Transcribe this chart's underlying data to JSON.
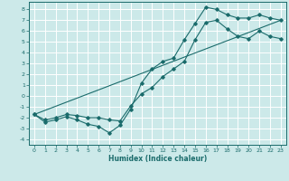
{
  "xlabel": "Humidex (Indice chaleur)",
  "ylabel": "",
  "xlim": [
    -0.5,
    23.5
  ],
  "ylim": [
    -4.5,
    8.7
  ],
  "xticks": [
    0,
    1,
    2,
    3,
    4,
    5,
    6,
    7,
    8,
    9,
    10,
    11,
    12,
    13,
    14,
    15,
    16,
    17,
    18,
    19,
    20,
    21,
    22,
    23
  ],
  "yticks": [
    -4,
    -3,
    -2,
    -1,
    0,
    1,
    2,
    3,
    4,
    5,
    6,
    7,
    8
  ],
  "bg_color": "#cce9e9",
  "grid_color": "#ffffff",
  "line_color": "#1a6b6b",
  "line1_x": [
    0,
    1,
    2,
    3,
    4,
    5,
    6,
    7,
    8,
    9,
    10,
    11,
    12,
    13,
    14,
    15,
    16,
    17,
    18,
    19,
    20,
    21,
    22,
    23
  ],
  "line1_y": [
    -1.7,
    -2.4,
    -2.2,
    -1.9,
    -2.2,
    -2.6,
    -2.8,
    -3.4,
    -2.7,
    -1.2,
    1.2,
    2.5,
    3.2,
    3.5,
    5.2,
    6.7,
    8.2,
    8.0,
    7.5,
    7.2,
    7.2,
    7.5,
    7.2,
    7.0
  ],
  "line2_x": [
    0,
    1,
    2,
    3,
    4,
    5,
    6,
    7,
    8,
    9,
    10,
    11,
    12,
    13,
    14,
    15,
    16,
    17,
    18,
    19,
    20,
    21,
    22,
    23
  ],
  "line2_y": [
    -1.7,
    -2.2,
    -2.0,
    -1.7,
    -1.8,
    -2.0,
    -2.0,
    -2.2,
    -2.3,
    -0.9,
    0.2,
    0.8,
    1.8,
    2.5,
    3.2,
    5.2,
    6.8,
    7.0,
    6.2,
    5.5,
    5.3,
    6.0,
    5.5,
    5.3
  ],
  "line3_x": [
    0,
    23
  ],
  "line3_y": [
    -1.7,
    7.0
  ]
}
